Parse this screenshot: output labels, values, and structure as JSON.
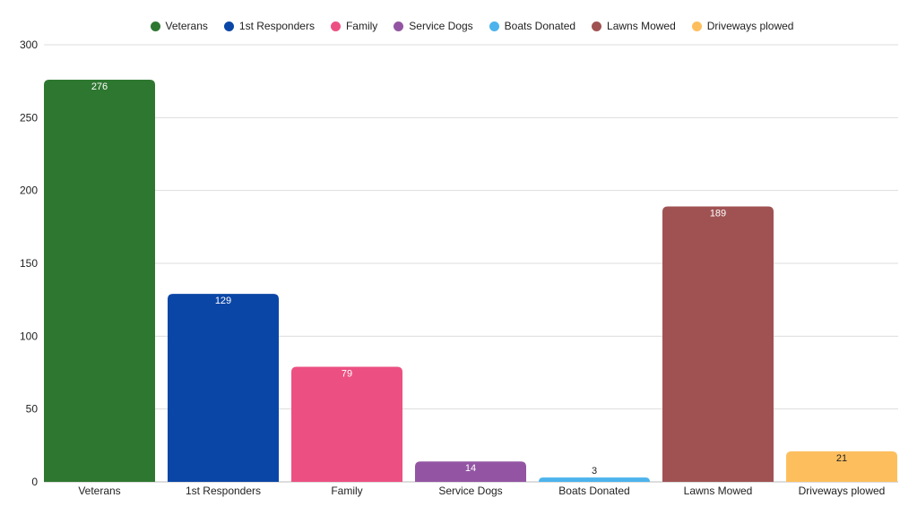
{
  "chart_data": {
    "type": "bar",
    "title": "",
    "xlabel": "",
    "ylabel": "",
    "ylim": [
      0,
      300
    ],
    "yticks": [
      0,
      50,
      100,
      150,
      200,
      250,
      300
    ],
    "grid": true,
    "legend_position": "top-center",
    "categories": [
      "Veterans",
      "1st Responders",
      "Family",
      "Service Dogs",
      "Boats Donated",
      "Lawns Mowed",
      "Driveways plowed"
    ],
    "values": [
      276,
      129,
      79,
      14,
      3,
      189,
      21
    ],
    "colors": [
      "#2e7730",
      "#0a46a6",
      "#ec5082",
      "#9355a3",
      "#4db3ec",
      "#a05253",
      "#fdbf5e"
    ],
    "data_label_colors": [
      "#ffffff",
      "#ffffff",
      "#ffffff",
      "#ffffff",
      "#222222",
      "#ffffff",
      "#222222"
    ]
  }
}
